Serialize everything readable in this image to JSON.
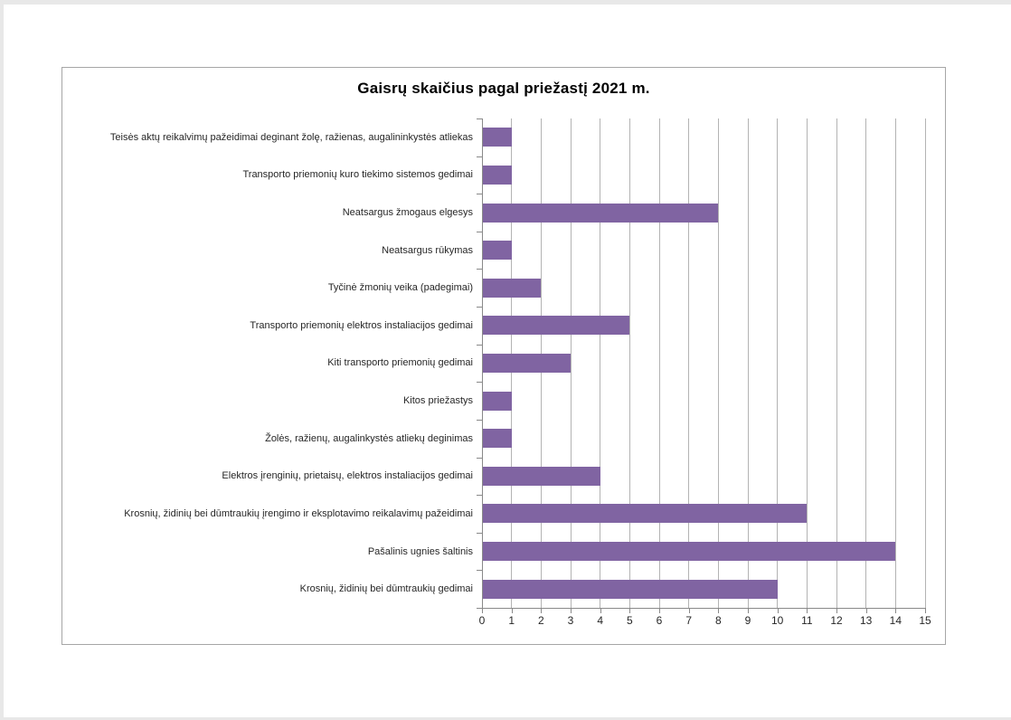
{
  "page": {
    "background": "#ffffff",
    "edge_color": "#e8e8e8"
  },
  "chart_data": {
    "type": "bar",
    "orientation": "horizontal",
    "title": "Gaisrų skaičius pagal priežastį 2021 m.",
    "categories": [
      "Teisės aktų reikalvimų pažeidimai deginant žolę, ražienas, augalininkystės atliekas",
      "Transporto priemonių kuro tiekimo sistemos gedimai",
      "Neatsargus žmogaus elgesys",
      "Neatsargus rūkymas",
      "Tyčinė žmonių veika (padegimai)",
      "Transporto priemonių elektros instaliacijos gedimai",
      "Kiti transporto priemonių gedimai",
      "Kitos priežastys",
      "Žolės, ražienų, augalinkystės atliekų deginimas",
      "Elektros įrenginių, prietaisų, elektros instaliacijos gedimai",
      "Krosnių, židinių bei dūmtraukių įrengimo ir eksplotavimo reikalavimų pažeidimai",
      "Pašalinis ugnies šaltinis",
      "Krosnių, židinių bei dūmtraukių gedimai"
    ],
    "values": [
      1,
      1,
      8,
      1,
      2,
      5,
      3,
      1,
      1,
      4,
      11,
      14,
      10
    ],
    "xlabel": "",
    "ylabel": "",
    "xlim": [
      0,
      15
    ],
    "xticks": [
      0,
      1,
      2,
      3,
      4,
      5,
      6,
      7,
      8,
      9,
      10,
      11,
      12,
      13,
      14,
      15
    ],
    "grid": "vertical-major",
    "legend": "none",
    "colors": {
      "bar": "#8064A2",
      "gridline": "#b3b3b3",
      "axis": "#898989",
      "label_text": "#262626",
      "frame_border": "#a6a6a6"
    }
  }
}
